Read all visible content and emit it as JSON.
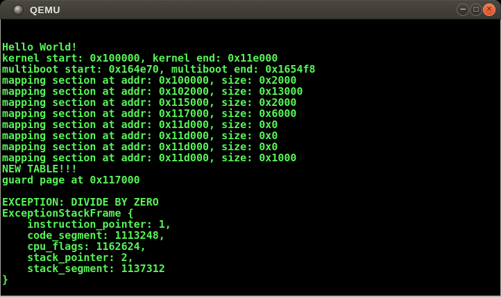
{
  "window": {
    "title": "QEMU",
    "controls": {
      "minimize_glyph": "−",
      "maximize_glyph": "□",
      "close_glyph": "✕"
    }
  },
  "terminal": {
    "lines": [
      "Hello World!",
      "kernel start: 0x100000, kernel end: 0x11e000",
      "multiboot start: 0x164e70, multiboot end: 0x1654f8",
      "mapping section at addr: 0x100000, size: 0x2000",
      "mapping section at addr: 0x102000, size: 0x13000",
      "mapping section at addr: 0x115000, size: 0x2000",
      "mapping section at addr: 0x117000, size: 0x6000",
      "mapping section at addr: 0x11d000, size: 0x0",
      "mapping section at addr: 0x11d000, size: 0x0",
      "mapping section at addr: 0x11d000, size: 0x0",
      "mapping section at addr: 0x11d000, size: 0x1000",
      "NEW TABLE!!!",
      "guard page at 0x117000",
      "",
      "EXCEPTION: DIVIDE BY ZERO",
      "ExceptionStackFrame {",
      "    instruction_pointer: 1,",
      "    code_segment: 1113248,",
      "    cpu_flags: 1162624,",
      "    stack_pointer: 2,",
      "    stack_segment: 1137312",
      "}"
    ],
    "text_color": "#57f557",
    "background": "#000000"
  },
  "colors": {
    "titlebar_bg": "#3f3c37",
    "titlebar_text": "#e8e6e1",
    "close_button": "#e4602f",
    "control_button": "#3c3933",
    "window_border": "#aaa79f",
    "bottom_border": "#b4b1a9"
  }
}
